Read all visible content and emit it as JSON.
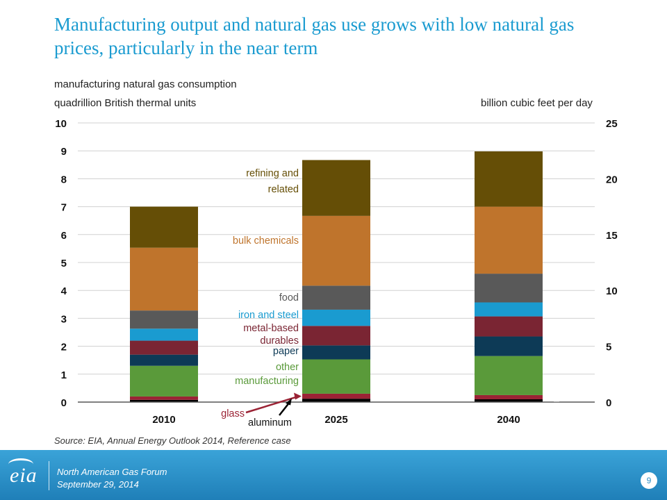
{
  "title": "Manufacturing output and natural gas use grows with low natural gas prices, particularly in the near term",
  "left_axis_title": "manufacturing natural gas consumption",
  "left_axis_unit": "quadrillion British thermal units",
  "right_axis_unit": "billion cubic feet per day",
  "source": "Source: EIA, Annual Energy Outlook 2014, Reference case",
  "footer": {
    "line1": "North American Gas Forum",
    "line2": "September 29, 2014",
    "logo_text": "eia",
    "page_number": "9"
  },
  "chart_data": {
    "type": "bar",
    "stacked": true,
    "categories": [
      "2010",
      "2025",
      "2040"
    ],
    "ylim": [
      0,
      10
    ],
    "y2lim": [
      0,
      25
    ],
    "yticks": [
      "0",
      "1",
      "2",
      "3",
      "4",
      "5",
      "6",
      "7",
      "8",
      "9",
      "10"
    ],
    "y2ticks": [
      "0",
      "5",
      "10",
      "15",
      "20",
      "25"
    ],
    "grid": true,
    "series": [
      {
        "name": "aluminum",
        "color": "#000000",
        "values": [
          0.08,
          0.12,
          0.1
        ]
      },
      {
        "name": "glass",
        "color": "#9b2335",
        "values": [
          0.12,
          0.18,
          0.15
        ]
      },
      {
        "name": "other manufacturing",
        "color": "#5a9a3a",
        "values": [
          1.1,
          1.23,
          1.4
        ]
      },
      {
        "name": "paper",
        "color": "#0d3a56",
        "values": [
          0.4,
          0.5,
          0.7
        ]
      },
      {
        "name": "metal-based durables",
        "color": "#7a2533",
        "values": [
          0.5,
          0.7,
          0.72
        ]
      },
      {
        "name": "iron and steel",
        "color": "#1a9bd0",
        "values": [
          0.43,
          0.58,
          0.5
        ]
      },
      {
        "name": "food",
        "color": "#595959",
        "values": [
          0.65,
          0.86,
          1.03
        ]
      },
      {
        "name": "bulk chemicals",
        "color": "#bf742c",
        "values": [
          2.25,
          2.5,
          2.4
        ]
      },
      {
        "name": "refining and related",
        "color": "#654e06",
        "values": [
          1.47,
          2.0,
          1.98
        ]
      }
    ],
    "legend_labels": [
      {
        "text": "refining and",
        "series": 8
      },
      {
        "text": "related",
        "series": 8
      },
      {
        "text": "bulk chemicals",
        "series": 7
      },
      {
        "text": "food",
        "series": 6
      },
      {
        "text": "iron and steel",
        "series": 5
      },
      {
        "text": "metal-based",
        "series": 4
      },
      {
        "text": "durables",
        "series": 4
      },
      {
        "text": "paper",
        "series": 3
      },
      {
        "text": "other",
        "series": 2
      },
      {
        "text": "manufacturing",
        "series": 2
      },
      {
        "text": "glass",
        "series": 1
      },
      {
        "text": "aluminum",
        "series": 0
      }
    ]
  }
}
